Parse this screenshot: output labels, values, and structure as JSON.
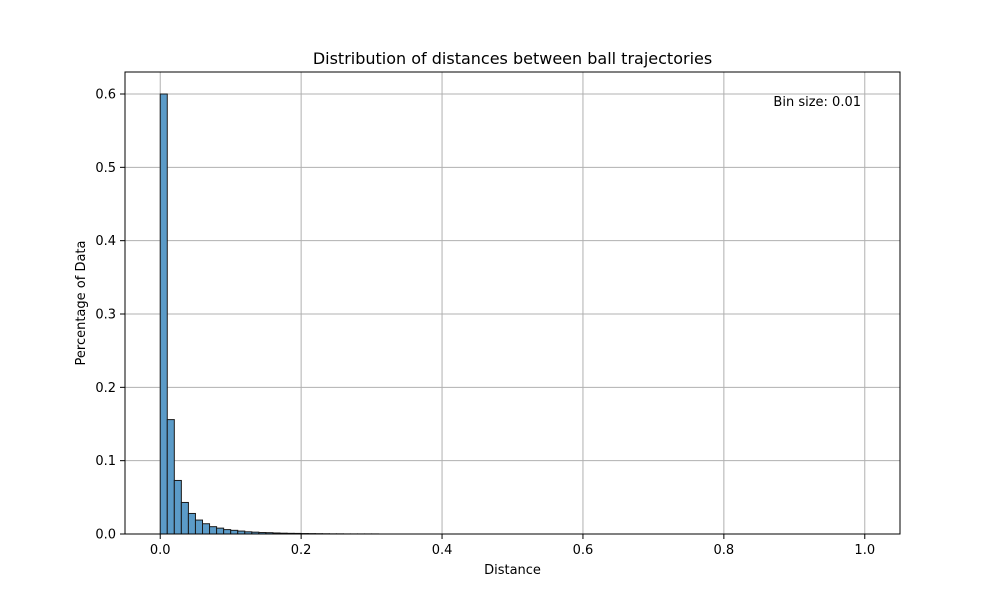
{
  "chart_data": {
    "type": "bar",
    "title": "Distribution of distances between ball trajectories",
    "xlabel": "Distance",
    "ylabel": "Percentage of Data",
    "annotation": "Bin size: 0.01",
    "bin_size": 0.01,
    "xlim": [
      -0.05,
      1.05
    ],
    "ylim": [
      0,
      0.63
    ],
    "x_ticks": [
      0.0,
      0.2,
      0.4,
      0.6,
      0.8,
      1.0
    ],
    "x_tick_labels": [
      "0.0",
      "0.2",
      "0.4",
      "0.6",
      "0.8",
      "1.0"
    ],
    "y_ticks": [
      0.0,
      0.1,
      0.2,
      0.3,
      0.4,
      0.5,
      0.6
    ],
    "y_tick_labels": [
      "0.0",
      "0.1",
      "0.2",
      "0.3",
      "0.4",
      "0.5",
      "0.6"
    ],
    "grid": true,
    "bar_color": "#5b9bc8",
    "bar_edge_color": "#1a1a1a",
    "bins": [
      {
        "start": 0.0,
        "value": 0.6
      },
      {
        "start": 0.01,
        "value": 0.156
      },
      {
        "start": 0.02,
        "value": 0.073
      },
      {
        "start": 0.03,
        "value": 0.043
      },
      {
        "start": 0.04,
        "value": 0.028
      },
      {
        "start": 0.05,
        "value": 0.019
      },
      {
        "start": 0.06,
        "value": 0.014
      },
      {
        "start": 0.07,
        "value": 0.01
      },
      {
        "start": 0.08,
        "value": 0.008
      },
      {
        "start": 0.09,
        "value": 0.006
      },
      {
        "start": 0.1,
        "value": 0.005
      },
      {
        "start": 0.11,
        "value": 0.004
      },
      {
        "start": 0.12,
        "value": 0.003
      },
      {
        "start": 0.13,
        "value": 0.0025
      },
      {
        "start": 0.14,
        "value": 0.002
      },
      {
        "start": 0.15,
        "value": 0.0018
      },
      {
        "start": 0.16,
        "value": 0.0014
      },
      {
        "start": 0.17,
        "value": 0.0011
      },
      {
        "start": 0.18,
        "value": 0.0009
      },
      {
        "start": 0.19,
        "value": 0.0008
      },
      {
        "start": 0.2,
        "value": 0.0006
      },
      {
        "start": 0.21,
        "value": 0.0005
      },
      {
        "start": 0.22,
        "value": 0.0004
      },
      {
        "start": 0.23,
        "value": 0.0003
      },
      {
        "start": 0.24,
        "value": 0.0002
      },
      {
        "start": 0.25,
        "value": 0.0002
      },
      {
        "start": 0.26,
        "value": 0.0001
      },
      {
        "start": 0.27,
        "value": 0.0001
      },
      {
        "start": 0.28,
        "value": 0.0001
      },
      {
        "start": 0.29,
        "value": 0.0001
      },
      {
        "start": 0.3,
        "value": 0.0001
      }
    ]
  }
}
